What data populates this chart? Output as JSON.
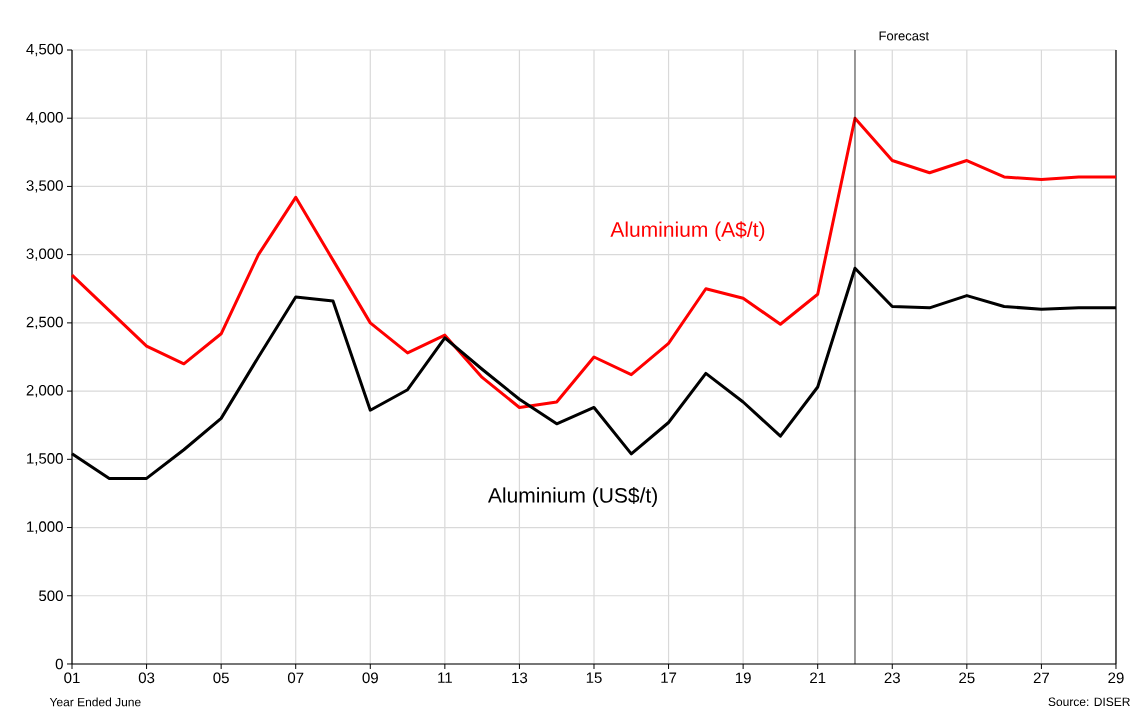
{
  "chart_data": {
    "type": "line",
    "x": [
      1,
      2,
      3,
      4,
      5,
      6,
      7,
      8,
      9,
      10,
      11,
      12,
      13,
      14,
      15,
      16,
      17,
      18,
      19,
      20,
      21,
      22,
      23,
      24,
      25,
      26,
      27,
      28,
      29
    ],
    "series": [
      {
        "name": "Aluminium (A$/t)",
        "color": "#ff0000",
        "values": [
          2850,
          2590,
          2330,
          2200,
          2420,
          3000,
          3420,
          2960,
          2500,
          2280,
          2410,
          2100,
          1880,
          1920,
          2250,
          2120,
          2350,
          2750,
          2680,
          2490,
          2710,
          4000,
          3690,
          3600,
          3690,
          3570,
          3550,
          3570,
          3570
        ]
      },
      {
        "name": "Aluminium (US$/t)",
        "color": "#000000",
        "values": [
          1540,
          1360,
          1360,
          1570,
          1800,
          2250,
          2690,
          2660,
          1860,
          2010,
          2390,
          2160,
          1940,
          1760,
          1880,
          1540,
          1770,
          2130,
          1920,
          1670,
          2030,
          2900,
          2620,
          2610,
          2700,
          2620,
          2600,
          2610,
          2610
        ]
      }
    ],
    "xlabel": "Year Ended June",
    "xlim": [
      1,
      29
    ],
    "xticks": [
      {
        "value": 1,
        "label": "01"
      },
      {
        "value": 3,
        "label": "03"
      },
      {
        "value": 5,
        "label": "05"
      },
      {
        "value": 7,
        "label": "07"
      },
      {
        "value": 9,
        "label": "09"
      },
      {
        "value": 11,
        "label": "11"
      },
      {
        "value": 13,
        "label": "13"
      },
      {
        "value": 15,
        "label": "15"
      },
      {
        "value": 17,
        "label": "17"
      },
      {
        "value": 19,
        "label": "19"
      },
      {
        "value": 21,
        "label": "21"
      },
      {
        "value": 23,
        "label": "23"
      },
      {
        "value": 25,
        "label": "25"
      },
      {
        "value": 27,
        "label": "27"
      },
      {
        "value": 29,
        "label": "29"
      }
    ],
    "ylim": [
      0,
      4500
    ],
    "yticks": [
      0,
      500,
      {
        "value": 1000,
        "label": "1,000"
      },
      {
        "value": 1500,
        "label": "1,500"
      },
      {
        "value": 2000,
        "label": "2,000"
      },
      {
        "value": 2500,
        "label": "2,500"
      },
      {
        "value": 3000,
        "label": "3,000"
      },
      {
        "value": 3500,
        "label": "3,500"
      },
      {
        "value": 4000,
        "label": "4,000"
      },
      {
        "value": 4500,
        "label": "4,500"
      }
    ],
    "ref_lines": [
      {
        "axis": "x",
        "value": 22,
        "label": "Forecast",
        "color": "#000000"
      }
    ],
    "annotations": [
      "Source: DISER"
    ],
    "grid": true,
    "marker": "none",
    "line_style": "solid"
  }
}
